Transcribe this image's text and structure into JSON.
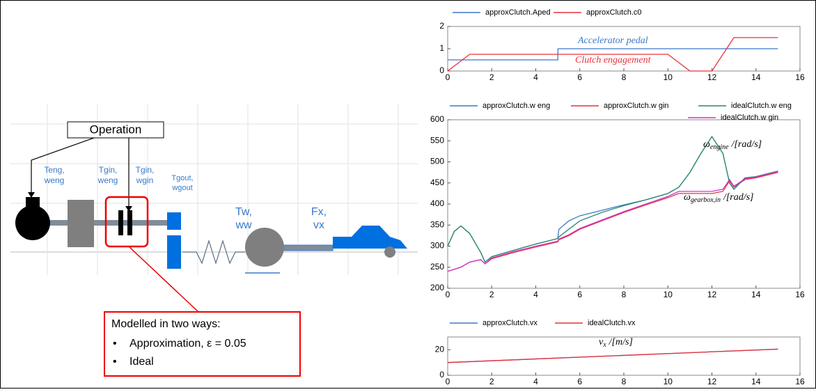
{
  "chart_data": [
    {
      "type": "line",
      "x": [
        0,
        1,
        5,
        5.01,
        10,
        11,
        12,
        13,
        15
      ],
      "series": [
        {
          "name": "approxClutch.Aped",
          "color": "#3b78c9",
          "values": [
            0.5,
            0.5,
            0.5,
            1,
            1,
            1,
            1,
            1,
            1
          ]
        },
        {
          "name": "approxClutch.c0",
          "color": "#e8303a",
          "values": [
            0,
            0.75,
            0.75,
            0.75,
            0.75,
            0,
            0,
            1.5,
            1.5
          ]
        }
      ],
      "xlim": [
        0,
        16
      ],
      "xticks": [
        0,
        2,
        4,
        6,
        8,
        10,
        12,
        14,
        16
      ],
      "ylim": [
        0,
        2
      ],
      "yticks": [
        0,
        1,
        2
      ],
      "annotations": [
        {
          "text": "Accelerator pedal",
          "color": "#3b78c9"
        },
        {
          "text": "Clutch engagement",
          "color": "#e8303a"
        }
      ]
    },
    {
      "type": "line",
      "x": [
        0,
        0.3,
        0.6,
        1,
        1.5,
        1.7,
        2,
        3,
        4,
        5,
        5.05,
        5.5,
        6,
        7,
        8,
        9,
        10,
        10.5,
        11,
        11.5,
        12,
        12.5,
        12.8,
        13,
        13.5,
        14,
        15
      ],
      "series": [
        {
          "name": "approxClutch.w eng",
          "color": "#3b78c9",
          "values": [
            300,
            335,
            348,
            330,
            285,
            262,
            275,
            290,
            305,
            318,
            340,
            360,
            372,
            385,
            398,
            410,
            425,
            440,
            475,
            520,
            560,
            520,
            450,
            435,
            462,
            465,
            478
          ]
        },
        {
          "name": "approxClutch.w gin",
          "color": "#e8303a",
          "values": [
            240,
            245,
            250,
            262,
            268,
            258,
            270,
            285,
            298,
            310,
            315,
            325,
            340,
            360,
            380,
            398,
            415,
            425,
            425,
            425,
            425,
            430,
            455,
            440,
            458,
            462,
            475
          ]
        },
        {
          "name": "idealClutch.w eng",
          "color": "#2a8a6a",
          "values": [
            300,
            335,
            348,
            330,
            285,
            262,
            275,
            290,
            305,
            318,
            322,
            340,
            360,
            380,
            396,
            410,
            425,
            440,
            475,
            520,
            560,
            520,
            450,
            435,
            462,
            465,
            478
          ]
        },
        {
          "name": "idealClutch.w gin",
          "color": "#cc33cc",
          "values": [
            240,
            245,
            250,
            262,
            268,
            258,
            272,
            287,
            300,
            312,
            317,
            327,
            342,
            362,
            382,
            400,
            418,
            430,
            430,
            430,
            430,
            435,
            458,
            442,
            460,
            464,
            477
          ]
        }
      ],
      "xlim": [
        0,
        16
      ],
      "xticks": [
        0,
        2,
        4,
        6,
        8,
        10,
        12,
        14,
        16
      ],
      "ylim": [
        200,
        600
      ],
      "yticks": [
        200,
        250,
        300,
        350,
        400,
        450,
        500,
        550,
        600
      ],
      "annotations": [
        {
          "symbol": "ω",
          "subscript": "engine",
          "text": "/[rad/s]",
          "color": "#000000"
        },
        {
          "symbol": "ω",
          "subscript": "gearbox,in",
          "text": "/[rad/s]",
          "color": "#000000"
        }
      ]
    },
    {
      "type": "line",
      "x": [
        0,
        15
      ],
      "series": [
        {
          "name": "approxClutch.vx",
          "color": "#3b78c9",
          "values": [
            10,
            20.5
          ]
        },
        {
          "name": "idealClutch.vx",
          "color": "#e8303a",
          "values": [
            10,
            20.5
          ]
        }
      ],
      "xlim": [
        0,
        16
      ],
      "xticks": [
        0,
        2,
        4,
        6,
        8,
        10,
        12,
        14,
        16
      ],
      "ylim": [
        0,
        30
      ],
      "yticks": [
        0,
        20
      ],
      "annotations": [
        {
          "symbol": "v",
          "subscript": "x",
          "text": "/[m/s]",
          "color": "#000000"
        }
      ]
    }
  ],
  "diagram": {
    "operation": "Operation",
    "labels": [
      [
        "Teng,",
        "weng"
      ],
      [
        "Tgin,",
        "weng"
      ],
      [
        "Tgin,",
        "wgin"
      ],
      [
        "Tgout,",
        "wgout"
      ],
      [
        "Tw,",
        "ww"
      ],
      [
        "Fx,",
        "vx"
      ]
    ],
    "note": {
      "title": "Modelled in two ways:",
      "items": [
        "Approximation, ε = 0.05",
        "Ideal"
      ]
    }
  }
}
